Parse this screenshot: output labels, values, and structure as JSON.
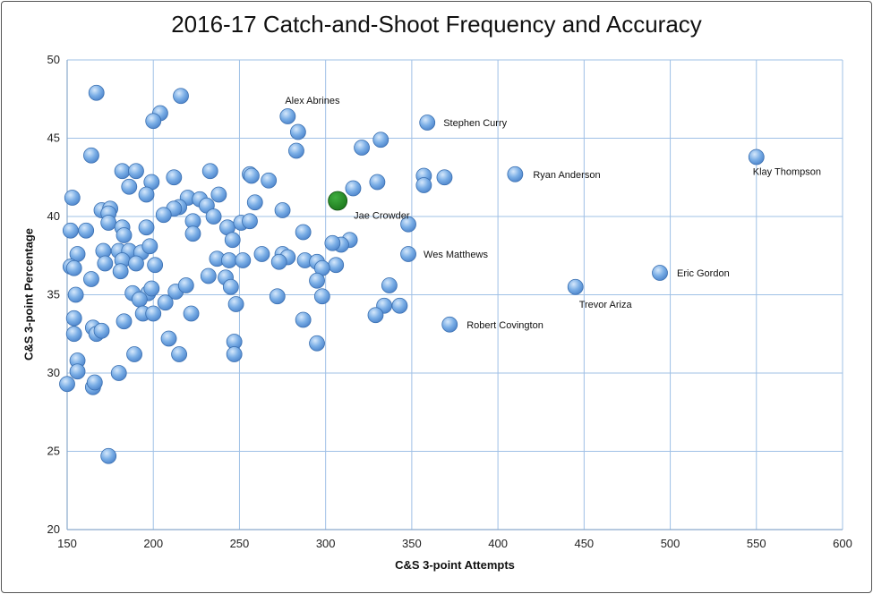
{
  "chart_data": {
    "type": "scatter",
    "title": "2016-17 Catch-and-Shoot Frequency and Accuracy",
    "xlabel": "C&S 3-point Attempts",
    "ylabel": "C&S 3-point Percentage",
    "xlim": [
      150,
      600
    ],
    "ylim": [
      20,
      50
    ],
    "xticks": [
      "150",
      "200",
      "250",
      "300",
      "350",
      "400",
      "450",
      "500",
      "550",
      "600"
    ],
    "yticks": [
      "20",
      "25",
      "30",
      "35",
      "40",
      "45",
      "50"
    ],
    "grid": true,
    "colors": {
      "point": "#7aaee6",
      "point_edge": "#3a6fb0",
      "highlight": "#1e7a1e",
      "grid": "#9fc0e6"
    },
    "highlight": {
      "label": "Jae Crowder",
      "x": 307,
      "y": 41.0
    },
    "labeled_points": [
      {
        "label": "Alex Abrines",
        "x": 278,
        "y": 46.4
      },
      {
        "label": "Stephen Curry",
        "x": 359,
        "y": 46.0
      },
      {
        "label": "Ryan Anderson",
        "x": 410,
        "y": 42.7
      },
      {
        "label": "Klay Thompson",
        "x": 550,
        "y": 43.8
      },
      {
        "label": "Wes Matthews",
        "x": 348,
        "y": 37.6
      },
      {
        "label": "Eric Gordon",
        "x": 494,
        "y": 36.4
      },
      {
        "label": "Trevor Ariza",
        "x": 445,
        "y": 35.5
      },
      {
        "label": "Robert Covington",
        "x": 372,
        "y": 33.1
      }
    ],
    "points": [
      [
        167,
        47.9
      ],
      [
        216,
        47.7
      ],
      [
        204,
        46.6
      ],
      [
        200,
        46.1
      ],
      [
        284,
        45.4
      ],
      [
        332,
        44.9
      ],
      [
        321,
        44.4
      ],
      [
        164,
        43.9
      ],
      [
        283,
        44.2
      ],
      [
        182,
        42.9
      ],
      [
        190,
        42.9
      ],
      [
        233,
        42.9
      ],
      [
        212,
        42.5
      ],
      [
        199,
        42.2
      ],
      [
        186,
        41.9
      ],
      [
        256,
        42.7
      ],
      [
        257,
        42.6
      ],
      [
        267,
        42.3
      ],
      [
        330,
        42.2
      ],
      [
        316,
        41.8
      ],
      [
        357,
        42.6
      ],
      [
        369,
        42.5
      ],
      [
        357,
        42.0
      ],
      [
        153,
        41.2
      ],
      [
        196,
        41.4
      ],
      [
        220,
        41.2
      ],
      [
        227,
        41.1
      ],
      [
        238,
        41.4
      ],
      [
        259,
        40.9
      ],
      [
        215,
        40.6
      ],
      [
        231,
        40.7
      ],
      [
        212,
        40.5
      ],
      [
        170,
        40.4
      ],
      [
        175,
        40.5
      ],
      [
        174,
        40.2
      ],
      [
        275,
        40.4
      ],
      [
        206,
        40.1
      ],
      [
        235,
        40.0
      ],
      [
        223,
        39.7
      ],
      [
        152,
        39.1
      ],
      [
        161,
        39.1
      ],
      [
        174,
        39.6
      ],
      [
        182,
        39.3
      ],
      [
        183,
        38.8
      ],
      [
        196,
        39.3
      ],
      [
        223,
        38.9
      ],
      [
        243,
        39.3
      ],
      [
        246,
        38.5
      ],
      [
        251,
        39.6
      ],
      [
        256,
        39.7
      ],
      [
        287,
        39.0
      ],
      [
        348,
        39.5
      ],
      [
        314,
        38.5
      ],
      [
        309,
        38.2
      ],
      [
        304,
        38.3
      ],
      [
        156,
        37.6
      ],
      [
        171,
        37.8
      ],
      [
        180,
        37.8
      ],
      [
        186,
        37.8
      ],
      [
        193,
        37.7
      ],
      [
        198,
        38.1
      ],
      [
        182,
        37.2
      ],
      [
        172,
        37.0
      ],
      [
        190,
        37.0
      ],
      [
        201,
        36.9
      ],
      [
        237,
        37.3
      ],
      [
        244,
        37.2
      ],
      [
        252,
        37.2
      ],
      [
        263,
        37.6
      ],
      [
        275,
        37.6
      ],
      [
        278,
        37.4
      ],
      [
        288,
        37.2
      ],
      [
        273,
        37.1
      ],
      [
        295,
        37.1
      ],
      [
        306,
        36.9
      ],
      [
        298,
        36.7
      ],
      [
        295,
        35.9
      ],
      [
        152,
        36.8
      ],
      [
        154,
        36.7
      ],
      [
        164,
        36.0
      ],
      [
        181,
        36.5
      ],
      [
        188,
        35.1
      ],
      [
        197,
        35.1
      ],
      [
        199,
        35.4
      ],
      [
        192,
        34.7
      ],
      [
        213,
        35.2
      ],
      [
        219,
        35.6
      ],
      [
        232,
        36.2
      ],
      [
        242,
        36.1
      ],
      [
        245,
        35.5
      ],
      [
        272,
        34.9
      ],
      [
        298,
        34.9
      ],
      [
        337,
        35.6
      ],
      [
        155,
        35.0
      ],
      [
        207,
        34.5
      ],
      [
        248,
        34.4
      ],
      [
        334,
        34.3
      ],
      [
        343,
        34.3
      ],
      [
        329,
        33.7
      ],
      [
        154,
        33.5
      ],
      [
        154,
        32.5
      ],
      [
        165,
        32.9
      ],
      [
        167,
        32.5
      ],
      [
        170,
        32.7
      ],
      [
        183,
        33.3
      ],
      [
        194,
        33.8
      ],
      [
        200,
        33.8
      ],
      [
        209,
        32.2
      ],
      [
        222,
        33.8
      ],
      [
        287,
        33.4
      ],
      [
        247,
        32.0
      ],
      [
        295,
        31.9
      ],
      [
        189,
        31.2
      ],
      [
        215,
        31.2
      ],
      [
        247,
        31.2
      ],
      [
        156,
        30.8
      ],
      [
        156,
        30.1
      ],
      [
        150,
        29.3
      ],
      [
        165,
        29.1
      ],
      [
        166,
        29.4
      ],
      [
        180,
        30.0
      ],
      [
        174,
        24.7
      ]
    ]
  }
}
